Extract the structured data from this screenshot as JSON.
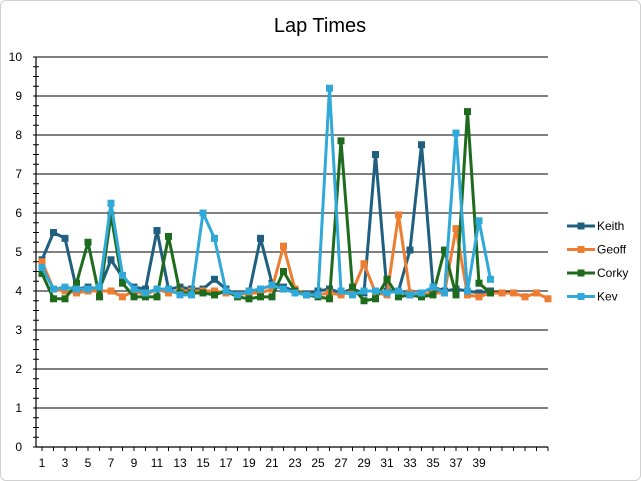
{
  "chart_data": {
    "type": "line",
    "title": "Lap Times",
    "xlabel": "",
    "ylabel": "",
    "ylim": [
      0,
      10
    ],
    "yticks": [
      0,
      1,
      2,
      3,
      4,
      5,
      6,
      7,
      8,
      9,
      10
    ],
    "xticks": [
      1,
      3,
      5,
      7,
      9,
      11,
      13,
      15,
      17,
      19,
      21,
      23,
      25,
      27,
      29,
      31,
      33,
      35,
      37,
      39
    ],
    "x_max": 45,
    "grid": "horizontal",
    "legend": "right",
    "markers": "square",
    "series": [
      {
        "name": "Keith",
        "color": "#1f5f7f",
        "values": [
          4.8,
          5.5,
          5.35,
          4.05,
          4.1,
          4.05,
          4.8,
          4.35,
          4.1,
          4.05,
          5.55,
          4.05,
          4.1,
          4.05,
          4.05,
          4.3,
          4.05,
          3.9,
          3.95,
          5.35,
          4.2,
          4.1,
          4.0,
          3.9,
          4.0,
          4.05,
          3.95,
          4.05,
          3.95,
          7.5,
          4.0,
          4.0,
          5.05,
          7.75,
          4.1,
          4.0,
          4.05,
          4.0,
          3.95,
          4.0
        ]
      },
      {
        "name": "Geoff",
        "color": "#ed7d31",
        "values": [
          4.75,
          4.05,
          4.0,
          3.95,
          4.0,
          4.0,
          4.0,
          3.85,
          4.0,
          3.9,
          4.05,
          3.95,
          4.0,
          4.0,
          4.0,
          4.0,
          3.95,
          3.9,
          3.95,
          3.95,
          4.05,
          5.15,
          4.05,
          3.9,
          3.9,
          3.95,
          3.9,
          4.0,
          4.7,
          3.95,
          3.9,
          5.95,
          3.95,
          3.9,
          3.95,
          3.95,
          5.6,
          3.9,
          3.85,
          3.95,
          3.95,
          3.95,
          3.85,
          3.95,
          3.8
        ]
      },
      {
        "name": "Corky",
        "color": "#1e6b1e",
        "values": [
          4.45,
          3.8,
          3.8,
          4.2,
          5.25,
          3.85,
          5.95,
          4.2,
          3.85,
          3.85,
          3.85,
          5.4,
          3.95,
          3.95,
          3.95,
          3.9,
          4.0,
          3.85,
          3.8,
          3.85,
          3.85,
          4.5,
          4.0,
          3.9,
          3.85,
          3.8,
          7.85,
          4.1,
          3.75,
          3.8,
          4.3,
          3.85,
          3.9,
          3.85,
          3.9,
          5.05,
          3.9,
          8.6,
          4.2,
          3.95
        ]
      },
      {
        "name": "Kev",
        "color": "#30a8d8",
        "values": [
          4.6,
          4.05,
          4.1,
          4.05,
          4.05,
          4.1,
          6.25,
          4.4,
          4.05,
          3.95,
          4.05,
          4.05,
          3.9,
          3.9,
          6.0,
          5.35,
          4.0,
          3.9,
          4.0,
          4.05,
          4.15,
          4.05,
          3.95,
          3.9,
          3.9,
          9.2,
          4.0,
          3.9,
          4.0,
          4.0,
          3.95,
          4.0,
          3.9,
          3.95,
          4.1,
          3.95,
          8.05,
          4.0,
          5.8,
          4.3
        ]
      }
    ]
  }
}
